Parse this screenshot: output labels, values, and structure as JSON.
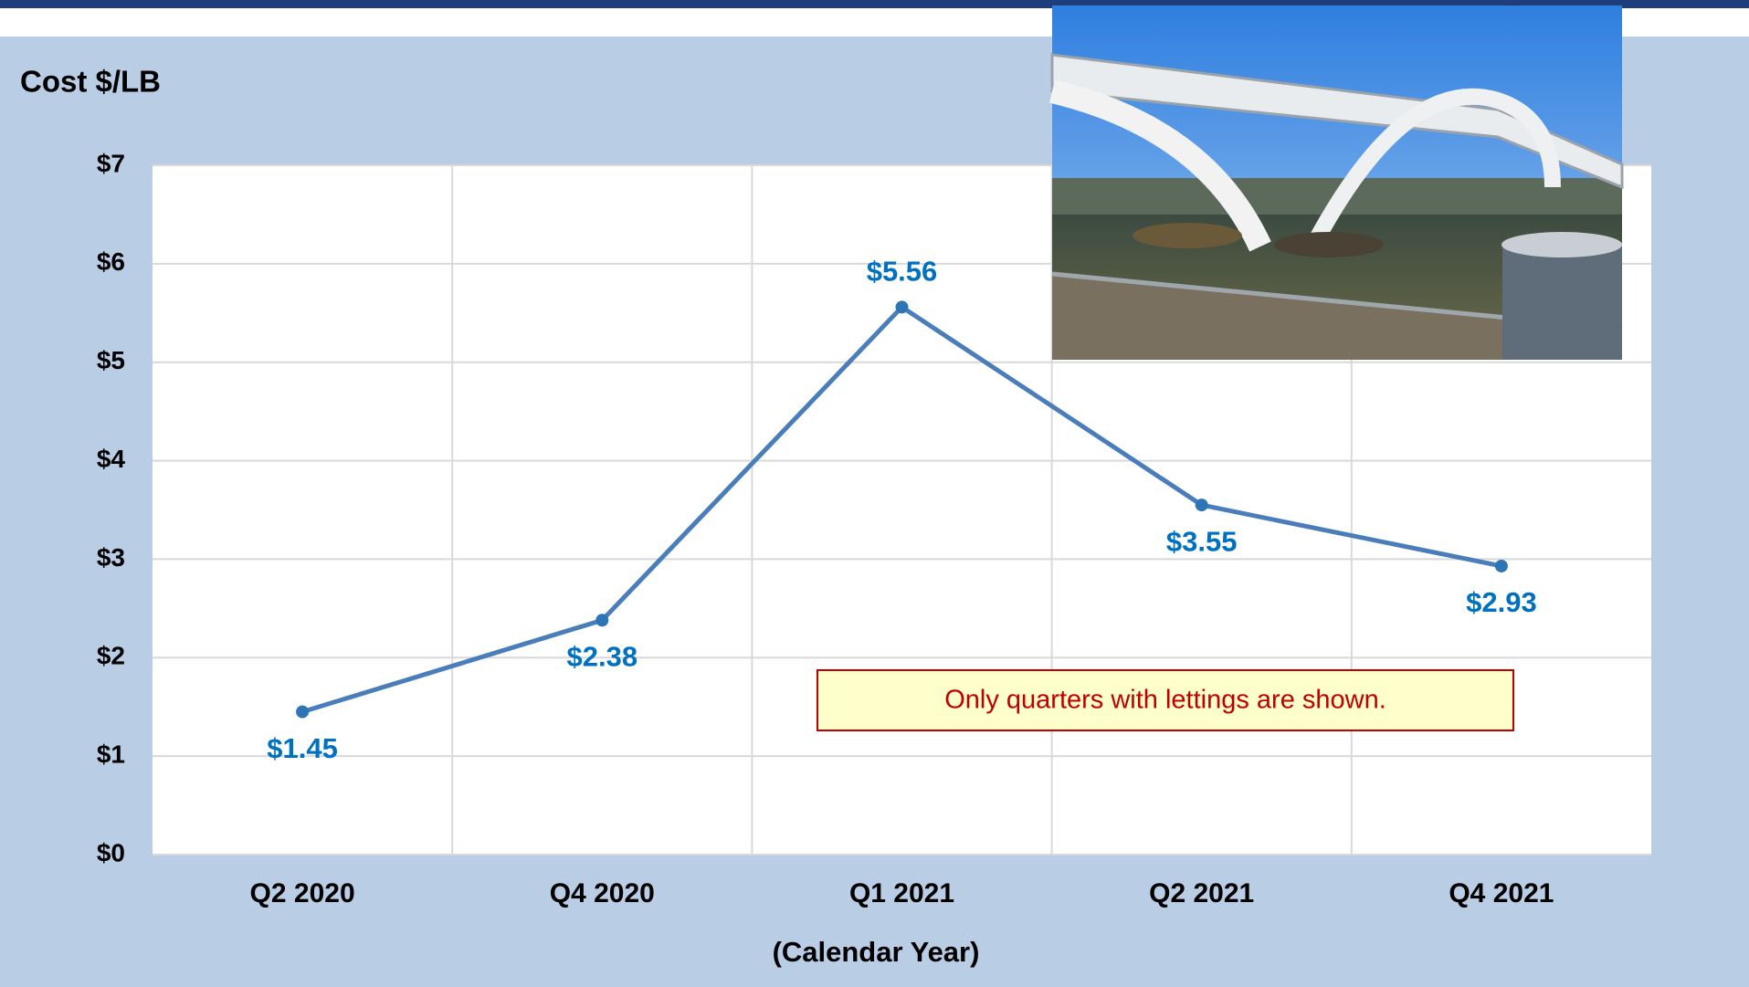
{
  "chart_data": {
    "type": "line",
    "y_axis_label": "Cost $/LB",
    "x_axis_label": "(Calendar Year)",
    "annotation": "Only quarters with lettings are shown.",
    "categories": [
      "Q2 2020",
      "Q4 2020",
      "Q1 2021",
      "Q2 2021",
      "Q4 2021"
    ],
    "values": [
      1.45,
      2.38,
      5.56,
      3.55,
      2.93
    ],
    "value_labels": [
      "$1.45",
      "$2.38",
      "$5.56",
      "$3.55",
      "$2.93"
    ],
    "color": "#4a7ebb",
    "marker_color": "#2e75b6",
    "label_color": "#0070c0",
    "ylim": [
      0,
      7
    ],
    "yticks": [
      {
        "value": 0,
        "label": "$0"
      },
      {
        "value": 1,
        "label": "$1"
      },
      {
        "value": 2,
        "label": "$2"
      },
      {
        "value": 3,
        "label": "$3"
      },
      {
        "value": 4,
        "label": "$4"
      },
      {
        "value": 5,
        "label": "$5"
      },
      {
        "value": 6,
        "label": "$6"
      },
      {
        "value": 7,
        "label": "$7"
      }
    ],
    "grid": true
  }
}
